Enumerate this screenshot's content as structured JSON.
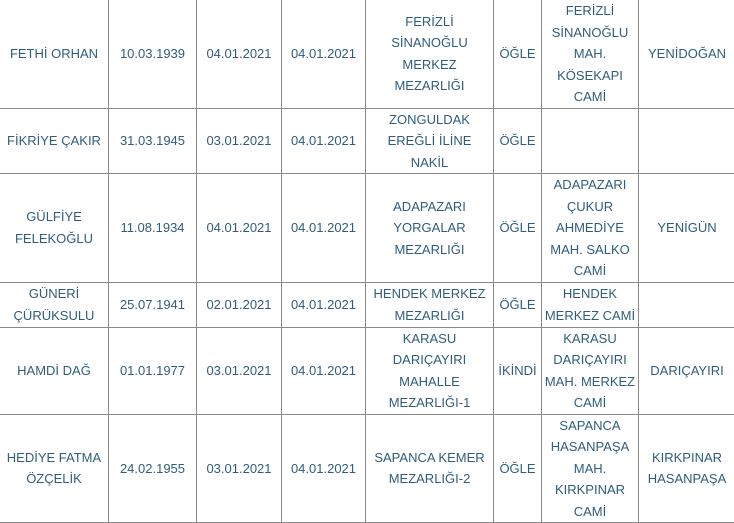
{
  "table": {
    "rows": [
      {
        "name": "FETHİ ORHAN",
        "birth": "10.03.1939",
        "death": "04.01.2021",
        "burial": "04.01.2021",
        "cemetery": "FERİZLİ SİNANOĞLU MERKEZ MEZARLIĞI",
        "prayer": "ÖĞLE",
        "mosque": "FERİZLİ SİNANOĞLU MAH. KÖSEKAPI CAMİ",
        "neighborhood": "YENİDOĞAN"
      },
      {
        "name": "FİKRİYE ÇAKIR",
        "birth": "31.03.1945",
        "death": "03.01.2021",
        "burial": "04.01.2021",
        "cemetery": "ZONGULDAK EREĞLİ İLİNE NAKİL",
        "prayer": "ÖĞLE",
        "mosque": "",
        "neighborhood": ""
      },
      {
        "name": "GÜLFİYE FELEKOĞLU",
        "birth": "11.08.1934",
        "death": "04.01.2021",
        "burial": "04.01.2021",
        "cemetery": "ADAPAZARI YORGALAR MEZARLIĞI",
        "prayer": "ÖĞLE",
        "mosque": "ADAPAZARI ÇUKUR AHMEDİYE MAH. SALKO CAMİ",
        "neighborhood": "YENİGÜN"
      },
      {
        "name": "GÜNERİ ÇÜRÜKSULU",
        "birth": "25.07.1941",
        "death": "02.01.2021",
        "burial": "04.01.2021",
        "cemetery": "HENDEK MERKEZ MEZARLIĞI",
        "prayer": "ÖĞLE",
        "mosque": "HENDEK MERKEZ CAMİ",
        "neighborhood": ""
      },
      {
        "name": "HAMDİ DAĞ",
        "birth": "01.01.1977",
        "death": "03.01.2021",
        "burial": "04.01.2021",
        "cemetery": "KARASU DARIÇAYIRI MAHALLE MEZARLIĞI-1",
        "prayer": "İKİNDİ",
        "mosque": "KARASU DARIÇAYIRI MAH. MERKEZ CAMİ",
        "neighborhood": "DARIÇAYIRI"
      },
      {
        "name": "HEDİYE FATMA ÖZÇELİK",
        "birth": "24.02.1955",
        "death": "03.01.2021",
        "burial": "04.01.2021",
        "cemetery": "SAPANCA KEMER MEZARLIĞI-2",
        "prayer": "ÖĞLE",
        "mosque": "SAPANCA HASANPAŞA MAH. KIRKPINAR CAMİ",
        "neighborhood": "KIRKPINAR HASANPAŞA"
      }
    ]
  }
}
